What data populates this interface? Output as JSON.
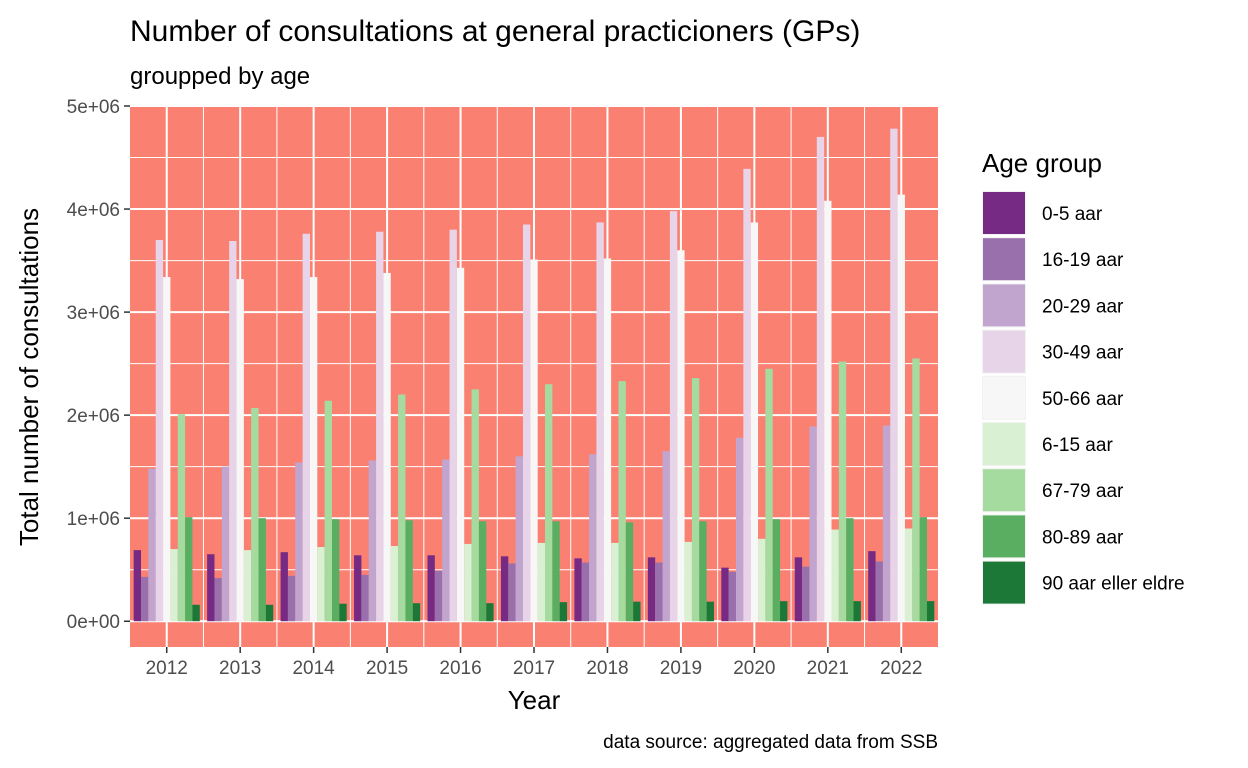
{
  "chart_data": {
    "type": "bar",
    "title": "Number of consultations at general practicioners (GPs)",
    "subtitle": "groupped by age",
    "xlabel": "Year",
    "ylabel": "Total number of  consultations",
    "caption": "data source: aggregated data from SSB",
    "ylim": [
      -250000,
      5000000
    ],
    "y_ticks": [
      0,
      1000000,
      2000000,
      3000000,
      4000000,
      5000000
    ],
    "y_tick_labels": [
      "0e+00",
      "1e+06",
      "2e+06",
      "3e+06",
      "4e+06",
      "5e+06"
    ],
    "grid": true,
    "panel_background": "#FA8072",
    "legend": {
      "title": "Age group",
      "position": "right"
    },
    "categories": [
      "2012",
      "2013",
      "2014",
      "2015",
      "2016",
      "2017",
      "2018",
      "2019",
      "2020",
      "2021",
      "2022"
    ],
    "series": [
      {
        "name": "0-5 aar",
        "color": "#762A83",
        "values": [
          690000,
          650000,
          670000,
          640000,
          640000,
          630000,
          610000,
          620000,
          520000,
          620000,
          680000
        ]
      },
      {
        "name": "16-19 aar",
        "color": "#9970AB",
        "values": [
          430000,
          420000,
          440000,
          450000,
          490000,
          560000,
          570000,
          570000,
          480000,
          530000,
          580000
        ]
      },
      {
        "name": "20-29 aar",
        "color": "#C2A5CF",
        "values": [
          1480000,
          1500000,
          1540000,
          1560000,
          1570000,
          1600000,
          1620000,
          1650000,
          1780000,
          1890000,
          1900000
        ]
      },
      {
        "name": "30-49 aar",
        "color": "#E7D4E8",
        "values": [
          3700000,
          3690000,
          3760000,
          3780000,
          3800000,
          3850000,
          3870000,
          3980000,
          4390000,
          4700000,
          4780000
        ]
      },
      {
        "name": "50-66 aar",
        "color": "#F7F7F7",
        "values": [
          3340000,
          3320000,
          3340000,
          3380000,
          3430000,
          3510000,
          3520000,
          3600000,
          3870000,
          4080000,
          4140000
        ]
      },
      {
        "name": "6-15 aar",
        "color": "#D9F0D3",
        "values": [
          700000,
          690000,
          720000,
          730000,
          750000,
          760000,
          760000,
          770000,
          800000,
          890000,
          900000
        ]
      },
      {
        "name": "67-79 aar",
        "color": "#A6DBA0",
        "values": [
          2010000,
          2070000,
          2140000,
          2200000,
          2250000,
          2300000,
          2330000,
          2360000,
          2450000,
          2520000,
          2550000
        ]
      },
      {
        "name": "80-89 aar",
        "color": "#5AAE61",
        "values": [
          1010000,
          1000000,
          990000,
          980000,
          970000,
          970000,
          960000,
          970000,
          990000,
          1000000,
          1010000
        ]
      },
      {
        "name": "90 aar eller eldre",
        "color": "#1B7837",
        "values": [
          160000,
          160000,
          170000,
          175000,
          175000,
          185000,
          190000,
          190000,
          195000,
          195000,
          195000
        ]
      }
    ]
  }
}
